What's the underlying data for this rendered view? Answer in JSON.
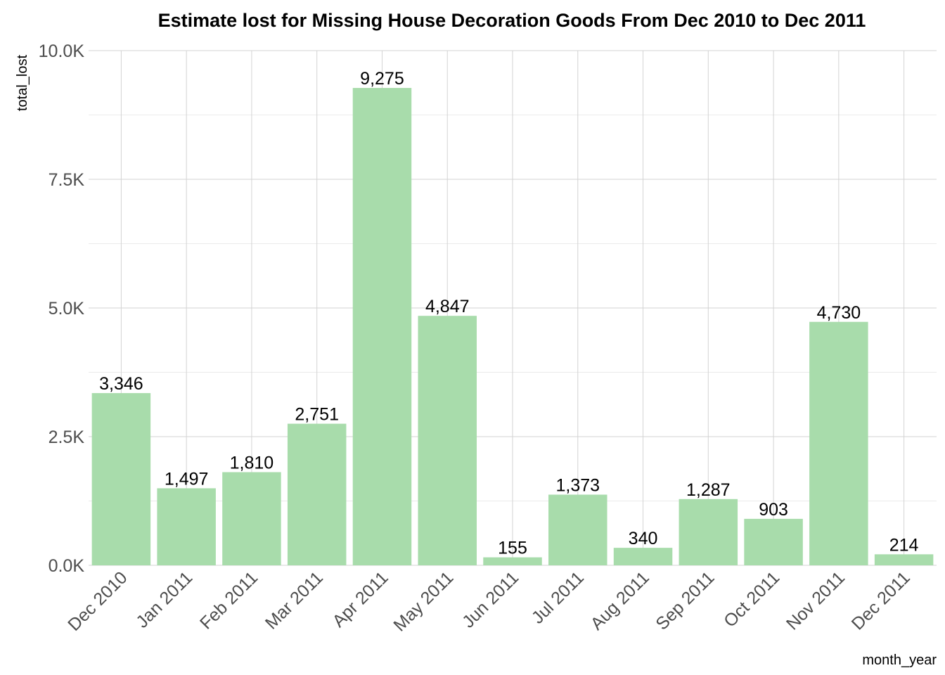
{
  "chart_data": {
    "type": "bar",
    "title": "Estimate lost for Missing House Decoration Goods From Dec 2010 to Dec 2011",
    "xlabel": "month_year",
    "ylabel": "total_lost",
    "categories": [
      "Dec 2010",
      "Jan 2011",
      "Feb 2011",
      "Mar 2011",
      "Apr 2011",
      "May 2011",
      "Jun 2011",
      "Jul 2011",
      "Aug 2011",
      "Sep 2011",
      "Oct 2011",
      "Nov 2011",
      "Dec 2011"
    ],
    "values": [
      3346,
      1497,
      1810,
      2751,
      9275,
      4847,
      155,
      1373,
      340,
      1287,
      903,
      4730,
      214
    ],
    "data_labels": [
      "3,346",
      "1,497",
      "1,810",
      "2,751",
      "9,275",
      "4,847",
      "155",
      "1,373",
      "340",
      "1,287",
      "903",
      "4,730",
      "214"
    ],
    "ylim": [
      0,
      10000
    ],
    "yticks": [
      0,
      2500,
      5000,
      7500,
      10000
    ],
    "ytick_labels": [
      "0.0K",
      "2.5K",
      "5.0K",
      "7.5K",
      "10.0K"
    ],
    "grid": true,
    "legend": "none",
    "bar_color": "#a8dcab"
  }
}
